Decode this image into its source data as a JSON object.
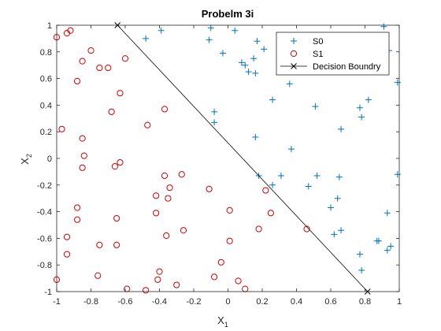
{
  "chart_data": {
    "type": "scatter",
    "title": "Probelm 3i",
    "xlabel": "X",
    "xlabel_sub": "1",
    "ylabel": "X",
    "ylabel_sub": "2",
    "xlim": [
      -1,
      1
    ],
    "ylim": [
      -1,
      1
    ],
    "xticks": [
      -1,
      -0.8,
      -0.6,
      -0.4,
      -0.2,
      0,
      0.2,
      0.4,
      0.6,
      0.8,
      1
    ],
    "xtick_labels": [
      "-1",
      "-0.8",
      "-0.6",
      "-0.4",
      "-0.2",
      "0",
      "0.2",
      "0.4",
      "0.6",
      "0.8",
      "1"
    ],
    "yticks": [
      -1,
      -0.8,
      -0.6,
      -0.4,
      -0.2,
      0,
      0.2,
      0.4,
      0.6,
      0.8,
      1
    ],
    "ytick_labels": [
      "-1",
      "-0.8",
      "-0.6",
      "-0.4",
      "-0.2",
      "0",
      "0.2",
      "0.4",
      "0.6",
      "0.8",
      "1"
    ],
    "grid": false,
    "legend_position": "top-right",
    "series": [
      {
        "name": "S0",
        "marker": "plus",
        "color": "#0072BD",
        "points": [
          [
            -0.48,
            0.9
          ],
          [
            -0.39,
            0.96
          ],
          [
            -0.11,
            0.89
          ],
          [
            -0.1,
            0.98
          ],
          [
            0.04,
            0.96
          ],
          [
            0.17,
            0.88
          ],
          [
            -0.03,
            0.79
          ],
          [
            0.08,
            0.72
          ],
          [
            0.1,
            0.7
          ],
          [
            0.12,
            0.65
          ],
          [
            0.15,
            0.75
          ],
          [
            0.16,
            0.64
          ],
          [
            0.21,
            0.82
          ],
          [
            0.26,
            0.44
          ],
          [
            0.36,
            0.56
          ],
          [
            0.37,
            0.07
          ],
          [
            -0.08,
            0.35
          ],
          [
            -0.08,
            0.27
          ],
          [
            0.16,
            0.16
          ],
          [
            0.18,
            -0.13
          ],
          [
            0.31,
            -0.13
          ],
          [
            0.26,
            -0.2
          ],
          [
            0.47,
            -0.21
          ],
          [
            0.52,
            -0.13
          ],
          [
            0.51,
            0.39
          ],
          [
            0.66,
            0.22
          ],
          [
            0.77,
            0.38
          ],
          [
            0.78,
            0.31
          ],
          [
            0.82,
            0.44
          ],
          [
            0.91,
            0.99
          ],
          [
            0.94,
            0.81
          ],
          [
            0.99,
            0.57
          ],
          [
            0.99,
            -0.12
          ],
          [
            0.64,
            -0.3
          ],
          [
            0.6,
            -0.37
          ],
          [
            0.62,
            -0.57
          ],
          [
            0.66,
            -0.54
          ],
          [
            0.93,
            -0.41
          ],
          [
            0.88,
            -0.62
          ],
          [
            0.87,
            -0.62
          ],
          [
            0.93,
            -0.69
          ],
          [
            0.95,
            -0.66
          ],
          [
            0.77,
            -0.72
          ],
          [
            0.78,
            -0.84
          ],
          [
            0.65,
            -0.14
          ]
        ]
      },
      {
        "name": "S1",
        "marker": "circle",
        "color": "#D00000",
        "points": [
          [
            -1.0,
            0.91
          ],
          [
            -0.94,
            0.94
          ],
          [
            -0.92,
            0.96
          ],
          [
            -0.8,
            0.81
          ],
          [
            -0.85,
            0.73
          ],
          [
            -0.88,
            0.58
          ],
          [
            -0.75,
            0.68
          ],
          [
            -0.7,
            0.68
          ],
          [
            -0.6,
            0.75
          ],
          [
            -0.63,
            0.49
          ],
          [
            -0.68,
            0.35
          ],
          [
            -0.47,
            0.25
          ],
          [
            -0.37,
            0.37
          ],
          [
            -0.97,
            0.22
          ],
          [
            -0.85,
            0.15
          ],
          [
            -0.84,
            0.02
          ],
          [
            -0.85,
            -0.07
          ],
          [
            -0.66,
            -0.06
          ],
          [
            -0.63,
            -0.03
          ],
          [
            -0.88,
            -0.37
          ],
          [
            -0.88,
            -0.46
          ],
          [
            -0.94,
            -0.59
          ],
          [
            -0.94,
            -0.72
          ],
          [
            -0.65,
            -0.45
          ],
          [
            -0.65,
            -0.65
          ],
          [
            -0.75,
            -0.65
          ],
          [
            -0.76,
            -0.88
          ],
          [
            -1.0,
            -0.91
          ],
          [
            -0.42,
            -0.28
          ],
          [
            -0.42,
            -0.41
          ],
          [
            -0.37,
            -0.13
          ],
          [
            -0.34,
            -0.22
          ],
          [
            -0.35,
            -0.3
          ],
          [
            -0.27,
            -0.12
          ],
          [
            -0.36,
            -0.58
          ],
          [
            -0.26,
            -0.54
          ],
          [
            -0.4,
            -0.85
          ],
          [
            -0.41,
            -0.91
          ],
          [
            -0.3,
            -0.95
          ],
          [
            -0.48,
            -0.99
          ],
          [
            -0.59,
            -0.98
          ],
          [
            -0.11,
            -0.23
          ],
          [
            0.01,
            -0.39
          ],
          [
            0.22,
            -0.24
          ],
          [
            0.25,
            -0.41
          ],
          [
            0.01,
            -0.62
          ],
          [
            0.18,
            -0.53
          ],
          [
            0.46,
            -0.53
          ],
          [
            -0.08,
            -0.89
          ],
          [
            -0.04,
            -0.78
          ],
          [
            0.06,
            -0.92
          ],
          [
            0.1,
            -0.98
          ]
        ]
      },
      {
        "name": "Decision Boundry",
        "marker": "x-line",
        "color": "#000000",
        "points": [
          [
            -0.645,
            1.0
          ],
          [
            0.815,
            -1.0
          ]
        ]
      }
    ]
  }
}
